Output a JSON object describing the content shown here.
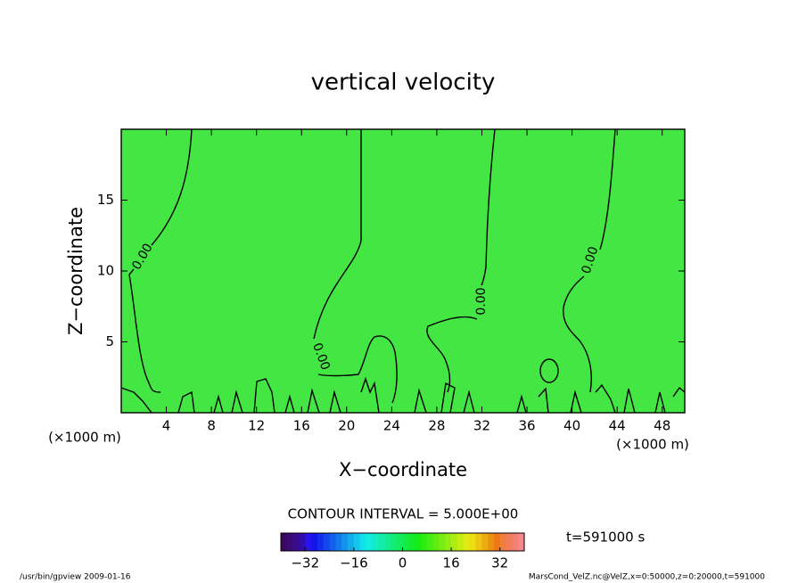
{
  "chart_data": {
    "type": "contour",
    "title": "vertical velocity",
    "x_label": "X−coordinate",
    "y_label": "Z−coordinate",
    "x_unit_labels": [
      "(×1000 m)",
      "(×1000 m)"
    ],
    "xlim": [
      0,
      50
    ],
    "xticks": [
      4,
      8,
      12,
      16,
      20,
      24,
      28,
      32,
      36,
      40,
      44,
      48
    ],
    "ylim": [
      0,
      20
    ],
    "yticks": [
      5,
      10,
      15
    ],
    "fill_color": "#44e644",
    "contour_level": 0,
    "contour_labels": [
      "0.00",
      "0.00",
      "0.00",
      "0.00"
    ],
    "contour_interval_text": "CONTOUR INTERVAL = 5.000E+00",
    "time_text": "t=591000 s",
    "clim": [
      -40,
      40
    ],
    "cticks": [
      {
        "value": -32,
        "label": "−32"
      },
      {
        "value": -16,
        "label": "−16"
      },
      0,
      16,
      32
    ],
    "footer_left": "/usr/bin/gpview  2009-01-16",
    "footer_right": "MarsCond_VelZ.nc@VelZ,x=0:50000,z=0:20000,t=591000"
  }
}
